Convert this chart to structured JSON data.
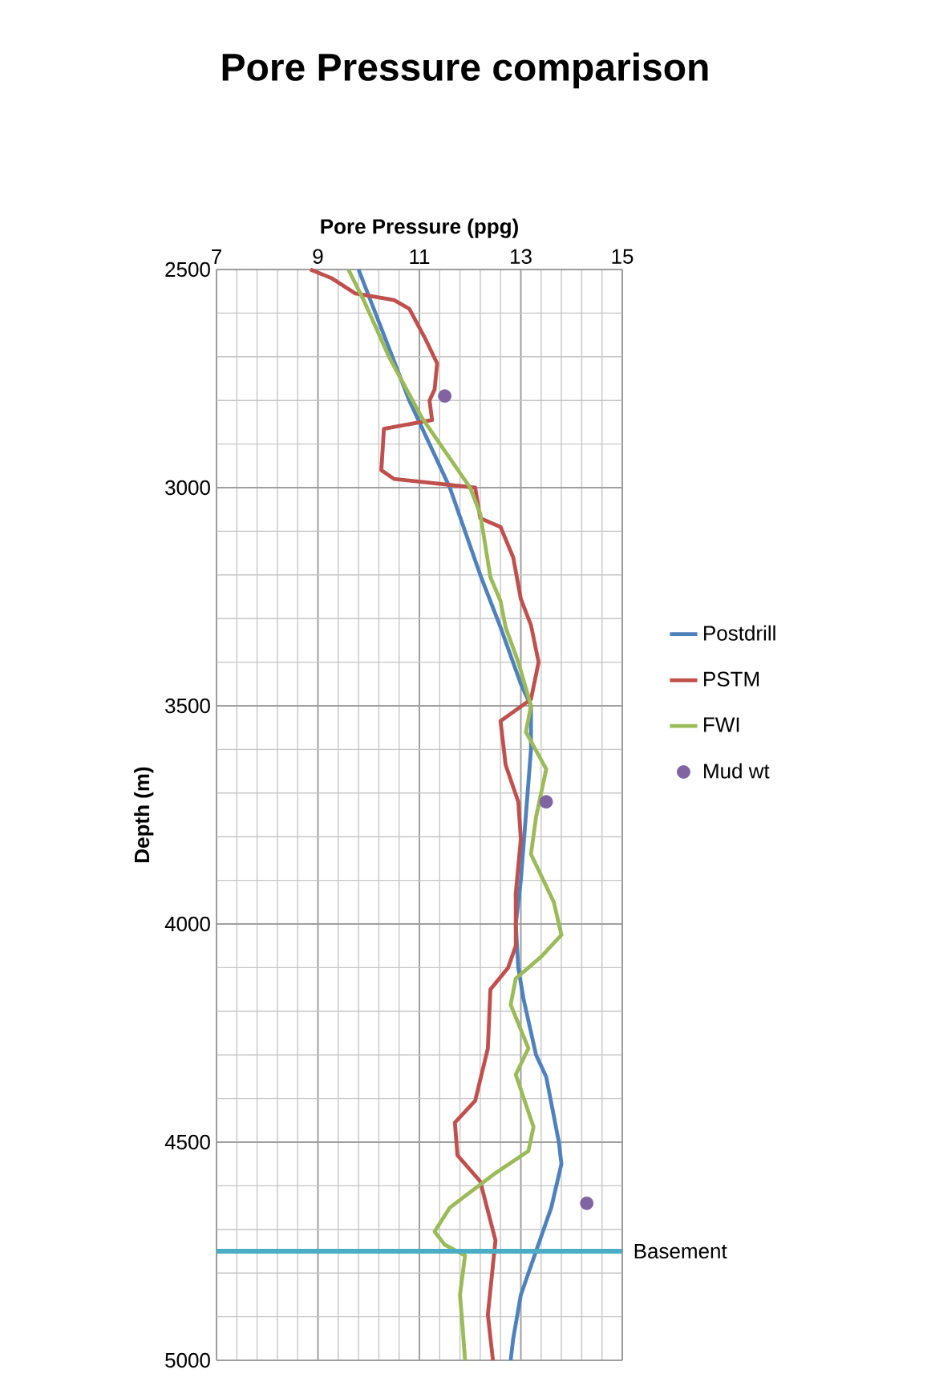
{
  "chart_data": {
    "type": "line",
    "title": "Pore Pressure comparison",
    "xlabel": "Pore Pressure (ppg)",
    "ylabel": "Depth (m)",
    "xlim": [
      7,
      15
    ],
    "xticks": [
      7,
      9,
      11,
      13,
      15
    ],
    "ylim": [
      5000,
      2500
    ],
    "yticks": [
      2500,
      3000,
      3500,
      4000,
      4500,
      5000
    ],
    "grid": true,
    "legend": "right",
    "series": [
      {
        "name": "Postdrill",
        "color": "#4f81bd",
        "x": [
          9.8,
          10.3,
          10.8,
          11.6,
          12.2,
          12.6,
          13.0,
          13.2,
          13.2,
          13.1,
          13.0,
          12.9,
          12.95,
          13.05,
          13.3,
          13.5,
          13.75,
          13.8,
          13.6,
          13.3,
          13.0,
          12.85,
          12.8
        ],
        "values": [
          2500,
          2650,
          2800,
          3000,
          3200,
          3320,
          3450,
          3500,
          3600,
          3750,
          3900,
          4000,
          4100,
          4170,
          4300,
          4350,
          4500,
          4550,
          4650,
          4750,
          4850,
          4950,
          5000
        ]
      },
      {
        "name": "PSTM",
        "color": "#c0504d",
        "x": [
          8.85,
          9.27,
          9.74,
          10.5,
          10.8,
          11.1,
          11.35,
          11.3,
          11.2,
          11.25,
          10.3,
          10.25,
          10.5,
          12.1,
          12.2,
          12.6,
          12.85,
          13.0,
          13.2,
          13.35,
          13.2,
          12.6,
          12.7,
          12.95,
          13.0,
          12.9,
          12.9,
          12.75,
          12.4,
          12.35,
          12.1,
          11.7,
          11.75,
          12.2,
          12.5,
          12.35,
          12.45
        ],
        "values": [
          2500,
          2520,
          2555,
          2570,
          2590,
          2655,
          2715,
          2775,
          2800,
          2845,
          2865,
          2960,
          2980,
          3000,
          3070,
          3090,
          3160,
          3255,
          3315,
          3400,
          3485,
          3535,
          3635,
          3720,
          3805,
          3930,
          4050,
          4100,
          4150,
          4285,
          4405,
          4455,
          4530,
          4590,
          4725,
          4895,
          5000
        ]
      },
      {
        "name": "FWI",
        "color": "#9bbb59",
        "x": [
          9.6,
          9.9,
          10.4,
          11.05,
          12.0,
          12.2,
          12.4,
          12.6,
          12.7,
          12.95,
          13.2,
          13.1,
          13.5,
          13.3,
          13.2,
          13.65,
          13.8,
          13.4,
          12.9,
          12.8,
          13.15,
          12.9,
          13.25,
          13.15,
          12.45,
          11.6,
          11.3,
          11.5,
          11.9,
          11.8,
          11.85,
          11.9
        ],
        "values": [
          2500,
          2570,
          2700,
          2840,
          3000,
          3060,
          3205,
          3260,
          3320,
          3400,
          3500,
          3560,
          3645,
          3755,
          3840,
          3950,
          4025,
          4075,
          4125,
          4185,
          4285,
          4345,
          4465,
          4520,
          4575,
          4650,
          4705,
          4735,
          4760,
          4850,
          4920,
          5000
        ]
      },
      {
        "name": "Mud wt",
        "type": "scatter",
        "color": "#8064a2",
        "marker": "circle",
        "x": [
          11.5,
          13.5,
          14.3
        ],
        "values": [
          2790,
          3720,
          4640
        ]
      }
    ],
    "ref_lines": [
      {
        "axis": "y",
        "value": 4750,
        "label": "Basement",
        "color": "#4bacc6"
      }
    ]
  }
}
